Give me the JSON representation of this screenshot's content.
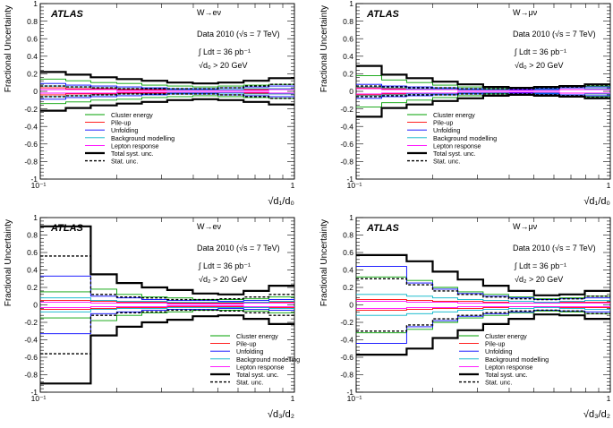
{
  "chart_data": [
    {
      "type": "line",
      "experiment": "ATLAS",
      "channel": "W→eν",
      "data_line": "Data 2010 (√s = 7 TeV)",
      "lumi": "∫ Ldt = 36 pb⁻¹",
      "cut": "√d₀ > 20 GeV",
      "xlabel": "√d₁/d₀",
      "ylabel": "Fractional Uncertainty",
      "xscale": "log",
      "xlim": [
        0.1,
        1.0
      ],
      "ylim": [
        -1.0,
        1.0
      ],
      "x_tick_labels": [
        "10⁻¹",
        "1"
      ],
      "y_ticks": [
        -1,
        -0.8,
        -0.6,
        -0.4,
        -0.2,
        0,
        0.2,
        0.4,
        0.6,
        0.8,
        1
      ],
      "legend_position": "bottom-left",
      "bin_edges": [
        0.1,
        0.126,
        0.158,
        0.2,
        0.251,
        0.316,
        0.398,
        0.501,
        0.631,
        0.794,
        1.0
      ],
      "series": [
        {
          "name": "Cluster energy",
          "color": "#00a000",
          "style": "solid",
          "symmetric": true,
          "values": [
            0.14,
            0.12,
            0.1,
            0.09,
            0.07,
            0.06,
            0.05,
            0.06,
            0.07,
            0.08
          ]
        },
        {
          "name": "Pile-up",
          "color": "#ff0000",
          "style": "solid",
          "symmetric": true,
          "values": [
            0.04,
            0.03,
            0.03,
            0.02,
            0.02,
            0.02,
            0.02,
            0.02,
            0.02,
            0.03
          ]
        },
        {
          "name": "Unfolding",
          "color": "#0000ff",
          "style": "solid",
          "symmetric": true,
          "values": [
            0.09,
            0.07,
            0.06,
            0.05,
            0.04,
            0.03,
            0.03,
            0.04,
            0.05,
            0.06
          ]
        },
        {
          "name": "Background modelling",
          "color": "#00b4c8",
          "style": "solid",
          "symmetric": true,
          "values": [
            0.06,
            0.05,
            0.04,
            0.03,
            0.03,
            0.02,
            0.02,
            0.02,
            0.03,
            0.03
          ]
        },
        {
          "name": "Lepton response",
          "color": "#ff00ff",
          "style": "solid",
          "symmetric": true,
          "values": [
            0.02,
            0.02,
            0.02,
            0.01,
            0.01,
            0.01,
            0.01,
            0.01,
            0.01,
            0.02
          ]
        },
        {
          "name": "Total syst. unc.",
          "color": "#000000",
          "style": "bold",
          "symmetric": true,
          "values": [
            0.22,
            0.19,
            0.16,
            0.14,
            0.12,
            0.1,
            0.09,
            0.1,
            0.12,
            0.15
          ]
        },
        {
          "name": "Stat. unc.",
          "color": "#000000",
          "style": "dashed",
          "symmetric": true,
          "values": [
            0.06,
            0.05,
            0.04,
            0.03,
            0.03,
            0.03,
            0.03,
            0.04,
            0.06,
            0.08
          ]
        }
      ]
    },
    {
      "type": "line",
      "experiment": "ATLAS",
      "channel": "W→μν",
      "data_line": "Data 2010 (√s = 7 TeV)",
      "lumi": "∫ Ldt = 36 pb⁻¹",
      "cut": "√d₀ > 20 GeV",
      "xlabel": "√d₁/d₀",
      "ylabel": "Fractional Uncertainty",
      "xscale": "log",
      "xlim": [
        0.1,
        1.0
      ],
      "ylim": [
        -1.0,
        1.0
      ],
      "x_tick_labels": [
        "10⁻¹",
        "1"
      ],
      "y_ticks": [
        -1,
        -0.8,
        -0.6,
        -0.4,
        -0.2,
        0,
        0.2,
        0.4,
        0.6,
        0.8,
        1
      ],
      "legend_position": "bottom-left",
      "bin_edges": [
        0.1,
        0.126,
        0.158,
        0.2,
        0.251,
        0.316,
        0.398,
        0.501,
        0.631,
        0.794,
        1.0
      ],
      "series": [
        {
          "name": "Cluster energy",
          "color": "#00a000",
          "style": "solid",
          "symmetric": true,
          "values": [
            0.18,
            0.13,
            0.1,
            0.07,
            0.05,
            0.03,
            0.02,
            0.03,
            0.04,
            0.06
          ]
        },
        {
          "name": "Pile-up",
          "color": "#ff0000",
          "style": "solid",
          "symmetric": true,
          "values": [
            0.04,
            0.03,
            0.03,
            0.02,
            0.02,
            0.01,
            0.01,
            0.02,
            0.02,
            0.03
          ]
        },
        {
          "name": "Unfolding",
          "color": "#0000ff",
          "style": "solid",
          "symmetric": true,
          "values": [
            0.08,
            0.06,
            0.05,
            0.04,
            0.03,
            0.02,
            0.02,
            0.03,
            0.04,
            0.05
          ]
        },
        {
          "name": "Background modelling",
          "color": "#00b4c8",
          "style": "solid",
          "symmetric": true,
          "values": [
            0.05,
            0.04,
            0.03,
            0.03,
            0.02,
            0.02,
            0.01,
            0.02,
            0.02,
            0.03
          ]
        },
        {
          "name": "Lepton response",
          "color": "#ff00ff",
          "style": "solid",
          "symmetric": true,
          "values": [
            0.03,
            0.02,
            0.02,
            0.02,
            0.01,
            0.01,
            0.01,
            0.01,
            0.02,
            0.02
          ]
        },
        {
          "name": "Total syst. unc.",
          "color": "#000000",
          "style": "bold",
          "symmetric": true,
          "values": [
            0.29,
            0.19,
            0.15,
            0.11,
            0.08,
            0.05,
            0.04,
            0.05,
            0.06,
            0.08
          ]
        },
        {
          "name": "Stat. unc.",
          "color": "#000000",
          "style": "dashed",
          "symmetric": true,
          "values": [
            0.06,
            0.05,
            0.04,
            0.04,
            0.03,
            0.03,
            0.03,
            0.04,
            0.05,
            0.07
          ]
        }
      ]
    },
    {
      "type": "line",
      "experiment": "ATLAS",
      "channel": "W→eν",
      "data_line": "Data 2010 (√s = 7 TeV)",
      "lumi": "∫ Ldt = 36 pb⁻¹",
      "cut": "√d₂ > 20 GeV",
      "xlabel": "√d₃/d₂",
      "ylabel": "Fractional Uncertainty",
      "xscale": "log",
      "xlim": [
        0.1,
        1.0
      ],
      "ylim": [
        -1.0,
        1.0
      ],
      "x_tick_labels": [
        "10⁻¹",
        "1"
      ],
      "y_ticks": [
        -1,
        -0.8,
        -0.6,
        -0.4,
        -0.2,
        0,
        0.2,
        0.4,
        0.6,
        0.8,
        1
      ],
      "legend_position": "bottom-right",
      "bin_edges": [
        0.1,
        0.158,
        0.2,
        0.251,
        0.316,
        0.398,
        0.501,
        0.631,
        0.794,
        1.0
      ],
      "series": [
        {
          "name": "Cluster energy",
          "color": "#00a000",
          "style": "solid",
          "symmetric": true,
          "values": [
            0.15,
            0.18,
            0.12,
            0.09,
            0.08,
            0.06,
            0.06,
            0.07,
            0.09
          ]
        },
        {
          "name": "Pile-up",
          "color": "#ff0000",
          "style": "solid",
          "symmetric": true,
          "values": [
            0.05,
            0.04,
            0.03,
            0.03,
            0.02,
            0.02,
            0.02,
            0.03,
            0.03
          ]
        },
        {
          "name": "Unfolding",
          "color": "#0000ff",
          "style": "solid",
          "symmetric": true,
          "values": [
            0.33,
            0.1,
            0.08,
            0.06,
            0.05,
            0.05,
            0.04,
            0.05,
            0.06
          ]
        },
        {
          "name": "Background modelling",
          "color": "#00b4c8",
          "style": "solid",
          "symmetric": true,
          "values": [
            0.08,
            0.05,
            0.04,
            0.04,
            0.03,
            0.03,
            0.03,
            0.03,
            0.04
          ]
        },
        {
          "name": "Lepton response",
          "color": "#ff00ff",
          "style": "solid",
          "symmetric": true,
          "values": [
            0.03,
            0.02,
            0.02,
            0.02,
            0.01,
            0.01,
            0.01,
            0.02,
            0.02
          ]
        },
        {
          "name": "Total syst. unc.",
          "color": "#000000",
          "style": "bold",
          "symmetric": true,
          "values": [
            0.9,
            0.35,
            0.25,
            0.2,
            0.17,
            0.13,
            0.12,
            0.16,
            0.22
          ]
        },
        {
          "name": "Stat. unc.",
          "color": "#000000",
          "style": "dashed",
          "symmetric": true,
          "values": [
            0.56,
            0.12,
            0.09,
            0.08,
            0.06,
            0.06,
            0.07,
            0.09,
            0.12
          ]
        }
      ]
    },
    {
      "type": "line",
      "experiment": "ATLAS",
      "channel": "W→μν",
      "data_line": "Data 2010 (√s = 7 TeV)",
      "lumi": "∫ Ldt = 36 pb⁻¹",
      "cut": "√d₂ > 20 GeV",
      "xlabel": "√d₃/d₂",
      "ylabel": "Fractional Uncertainty",
      "xscale": "log",
      "xlim": [
        0.1,
        1.0
      ],
      "ylim": [
        -1.0,
        1.0
      ],
      "x_tick_labels": [
        "10⁻¹",
        "1"
      ],
      "y_ticks": [
        -1,
        -0.8,
        -0.6,
        -0.4,
        -0.2,
        0,
        0.2,
        0.4,
        0.6,
        0.8,
        1
      ],
      "legend_position": "bottom-right",
      "bin_edges": [
        0.1,
        0.158,
        0.2,
        0.251,
        0.316,
        0.398,
        0.501,
        0.631,
        0.794,
        1.0
      ],
      "series": [
        {
          "name": "Cluster energy",
          "color": "#00a000",
          "style": "solid",
          "symmetric": true,
          "values": [
            0.32,
            0.28,
            0.2,
            0.15,
            0.12,
            0.09,
            0.07,
            0.08,
            0.1
          ]
        },
        {
          "name": "Pile-up",
          "color": "#ff0000",
          "style": "solid",
          "symmetric": true,
          "values": [
            0.06,
            0.05,
            0.04,
            0.04,
            0.03,
            0.02,
            0.02,
            0.03,
            0.03
          ]
        },
        {
          "name": "Unfolding",
          "color": "#0000ff",
          "style": "solid",
          "symmetric": true,
          "values": [
            0.44,
            0.25,
            0.18,
            0.13,
            0.1,
            0.08,
            0.06,
            0.07,
            0.08
          ]
        },
        {
          "name": "Background modelling",
          "color": "#00b4c8",
          "style": "solid",
          "symmetric": true,
          "values": [
            0.12,
            0.1,
            0.08,
            0.06,
            0.05,
            0.04,
            0.03,
            0.04,
            0.05
          ]
        },
        {
          "name": "Lepton response",
          "color": "#ff00ff",
          "style": "solid",
          "symmetric": true,
          "values": [
            0.04,
            0.03,
            0.03,
            0.02,
            0.02,
            0.02,
            0.02,
            0.02,
            0.02
          ]
        },
        {
          "name": "Total syst. unc.",
          "color": "#000000",
          "style": "bold",
          "symmetric": true,
          "values": [
            0.57,
            0.5,
            0.38,
            0.29,
            0.22,
            0.16,
            0.11,
            0.12,
            0.16
          ]
        },
        {
          "name": "Stat. unc.",
          "color": "#000000",
          "style": "dashed",
          "symmetric": true,
          "values": [
            0.3,
            0.23,
            0.16,
            0.12,
            0.09,
            0.07,
            0.06,
            0.07,
            0.1
          ]
        }
      ]
    }
  ]
}
